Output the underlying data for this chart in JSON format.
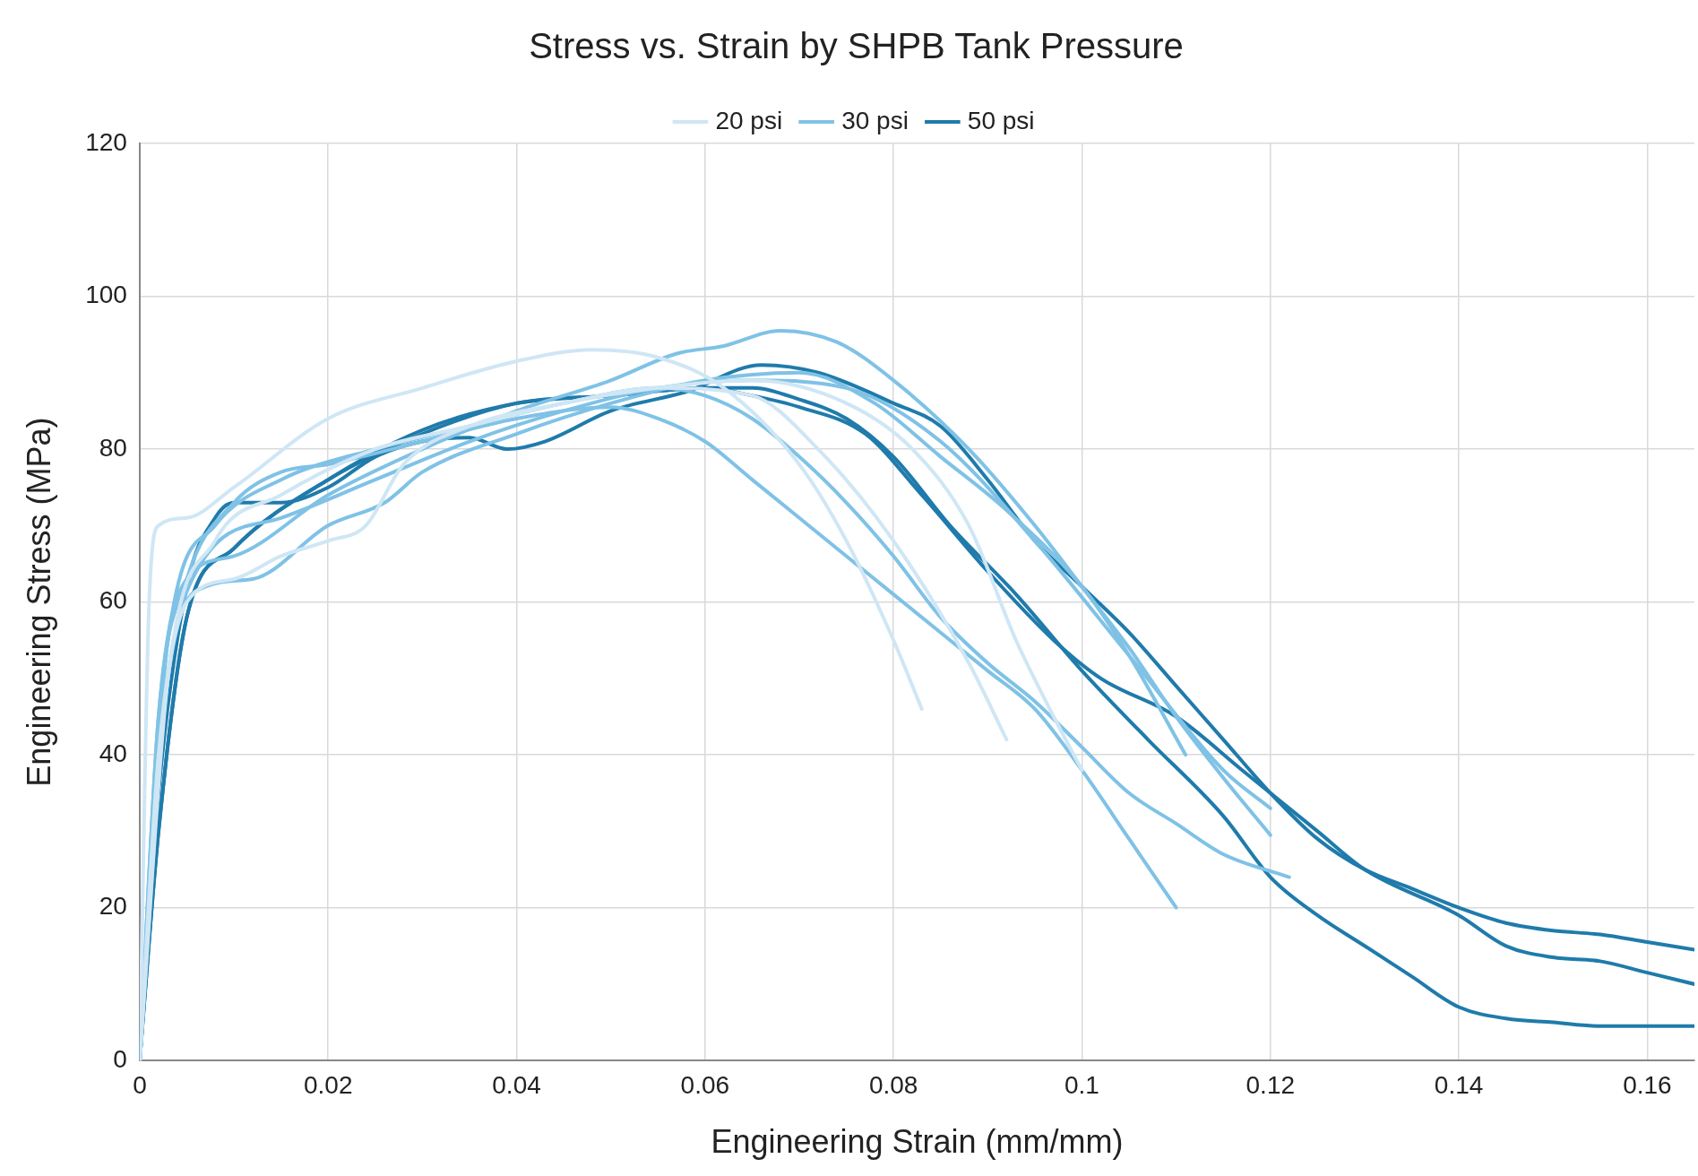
{
  "chart_data": {
    "type": "line",
    "title": "Stress vs. Strain by SHPB Tank Pressure",
    "xlabel": "Engineering Strain (mm/mm)",
    "ylabel": "Engineering Stress (MPa)",
    "xlim": [
      0,
      0.165
    ],
    "xticks": [
      0,
      0.02,
      0.04,
      0.06,
      0.08,
      0.1,
      0.12,
      0.14,
      0.16
    ],
    "ylim": [
      0,
      120
    ],
    "yticks": [
      0,
      20,
      40,
      60,
      80,
      100,
      120
    ],
    "grid": true,
    "legend": "top",
    "marker": "none",
    "line_style": "solid",
    "series": [
      {
        "name": "20 psi",
        "color": "#cfe6f5",
        "x": [
          0,
          0.001,
          0.002,
          0.005,
          0.01,
          0.02,
          0.03,
          0.04,
          0.048,
          0.055,
          0.062,
          0.07,
          0.075,
          0.08,
          0.083
        ],
        "values": [
          0,
          60,
          70,
          71,
          75,
          84,
          88,
          91.5,
          93,
          92,
          88,
          78,
          68,
          55,
          46
        ]
      },
      {
        "color": "#cfe6f5",
        "x": [
          0,
          0.002,
          0.005,
          0.01,
          0.015,
          0.02,
          0.024,
          0.028,
          0.035,
          0.045,
          0.055,
          0.065,
          0.075,
          0.082,
          0.088,
          0.093,
          0.097,
          0.1
        ],
        "values": [
          0,
          40,
          60,
          63,
          66,
          68,
          70,
          78,
          83,
          86,
          88,
          89,
          86,
          80,
          70,
          55,
          45,
          38
        ]
      },
      {
        "color": "#cfe6f5",
        "x": [
          0,
          0.003,
          0.008,
          0.015,
          0.025,
          0.035,
          0.045,
          0.055,
          0.065,
          0.072,
          0.08,
          0.088,
          0.092
        ],
        "values": [
          0,
          50,
          68,
          74,
          80,
          83,
          86,
          88,
          87,
          80,
          68,
          52,
          42
        ]
      },
      {
        "name": "30 psi",
        "color": "#7fc2e6",
        "x": [
          0,
          0.002,
          0.005,
          0.01,
          0.02,
          0.03,
          0.04,
          0.05,
          0.057,
          0.062,
          0.068,
          0.074,
          0.08,
          0.088,
          0.095,
          0.1,
          0.105,
          0.11,
          0.115,
          0.12
        ],
        "values": [
          0,
          45,
          63,
          66,
          74,
          80,
          85,
          89,
          92.5,
          93.5,
          95.5,
          94,
          89,
          80,
          70,
          62,
          54,
          45,
          37,
          29.5
        ]
      },
      {
        "color": "#7fc2e6",
        "x": [
          0,
          0.002,
          0.005,
          0.01,
          0.015,
          0.02,
          0.03,
          0.04,
          0.05,
          0.055,
          0.06,
          0.065,
          0.07,
          0.075,
          0.08,
          0.085,
          0.09,
          0.095,
          0.1,
          0.105,
          0.11
        ],
        "values": [
          0,
          45,
          63,
          73,
          77,
          78,
          81,
          84,
          85.5,
          84,
          81,
          76,
          71,
          66,
          61,
          56,
          51,
          46,
          38,
          29,
          20
        ]
      },
      {
        "color": "#7fc2e6",
        "x": [
          0,
          0.003,
          0.008,
          0.015,
          0.025,
          0.035,
          0.045,
          0.055,
          0.06,
          0.065,
          0.07,
          0.075,
          0.08,
          0.085,
          0.09,
          0.095,
          0.1,
          0.105,
          0.11,
          0.115,
          0.122
        ],
        "values": [
          0,
          55,
          70,
          76,
          80,
          83,
          86,
          88,
          87,
          84,
          79,
          73,
          66,
          58,
          52,
          47,
          41,
          35,
          31,
          27,
          24
        ]
      },
      {
        "color": "#7fc2e6",
        "x": [
          0,
          0.003,
          0.007,
          0.012,
          0.02,
          0.026,
          0.03,
          0.04,
          0.05,
          0.06,
          0.07,
          0.078,
          0.085,
          0.092,
          0.1,
          0.105,
          0.111
        ],
        "values": [
          0,
          50,
          62,
          63,
          70,
          73,
          77,
          82,
          86,
          89,
          90,
          86,
          79,
          72,
          62,
          53,
          40
        ]
      },
      {
        "color": "#7fc2e6",
        "x": [
          0,
          0.002,
          0.006,
          0.015,
          0.025,
          0.035,
          0.045,
          0.055,
          0.065,
          0.075,
          0.085,
          0.095,
          0.105,
          0.115,
          0.12
        ],
        "values": [
          0,
          40,
          64,
          71,
          76,
          81,
          85,
          88,
          89,
          88,
          81,
          68,
          53,
          38,
          33
        ]
      },
      {
        "name": "50 psi",
        "color": "#1f7bab",
        "x": [
          0,
          0.002,
          0.005,
          0.008,
          0.01,
          0.015,
          0.02,
          0.025,
          0.03,
          0.035,
          0.039,
          0.043,
          0.05,
          0.058,
          0.066,
          0.072,
          0.08,
          0.085,
          0.09,
          0.095,
          0.1,
          0.105,
          0.11,
          0.115,
          0.12,
          0.125,
          0.13,
          0.135,
          0.14,
          0.145,
          0.15,
          0.155,
          0.16,
          0.165
        ],
        "values": [
          0,
          35,
          62,
          71,
          73,
          73,
          75,
          79,
          81,
          81.5,
          80,
          81,
          85,
          87.5,
          91,
          90,
          86,
          83,
          76,
          68,
          62,
          56,
          49,
          42,
          35,
          29,
          25,
          22.5,
          20,
          18,
          17,
          16.5,
          15.5,
          14.5
        ]
      },
      {
        "color": "#1f7bab",
        "x": [
          0,
          0.002,
          0.005,
          0.01,
          0.02,
          0.03,
          0.04,
          0.05,
          0.06,
          0.065,
          0.07,
          0.077,
          0.083,
          0.09,
          0.097,
          0.102,
          0.11,
          0.117,
          0.125,
          0.13,
          0.14,
          0.145,
          0.15,
          0.155,
          0.16,
          0.165
        ],
        "values": [
          0,
          30,
          58,
          67,
          76,
          82,
          86,
          87,
          88,
          87,
          85.5,
          82,
          74,
          64,
          55,
          50,
          45,
          38,
          30,
          25,
          19,
          15,
          13.5,
          13,
          11.5,
          10
        ]
      },
      {
        "color": "#1f7bab",
        "x": [
          0,
          0.002,
          0.005,
          0.01,
          0.02,
          0.03,
          0.04,
          0.05,
          0.06,
          0.065,
          0.07,
          0.075,
          0.08,
          0.086,
          0.093,
          0.1,
          0.107,
          0.115,
          0.12,
          0.125,
          0.13,
          0.135,
          0.14,
          0.145,
          0.15,
          0.155,
          0.165
        ],
        "values": [
          0,
          30,
          58,
          67,
          76,
          82.5,
          86,
          87,
          88,
          88,
          86.5,
          84,
          79,
          70,
          61,
          51,
          42,
          32,
          24,
          19,
          15,
          11,
          7,
          5.5,
          5,
          4.5,
          4.5
        ]
      }
    ]
  }
}
